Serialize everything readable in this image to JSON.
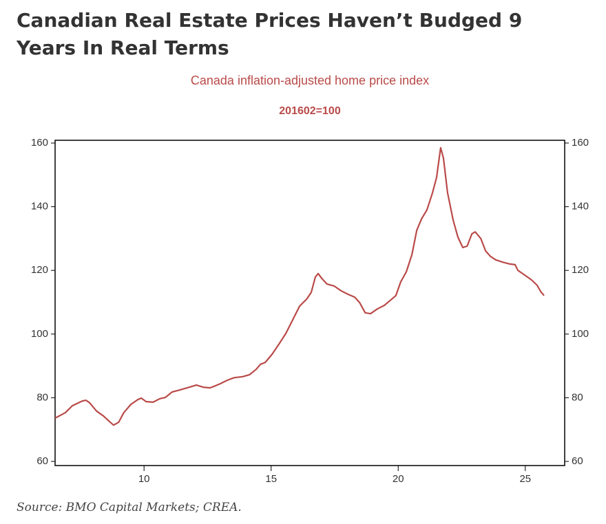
{
  "header": {
    "title": "Canadian Real Estate Prices Haven’t Budged 9 Years In Real Terms"
  },
  "chart_data": {
    "type": "line",
    "title": "Canada inflation-adjusted home price index",
    "subtitle": "201602=100",
    "x": [
      6.5,
      6.9,
      7.18,
      7.58,
      7.72,
      7.86,
      8.13,
      8.4,
      8.67,
      8.8,
      9.0,
      9.2,
      9.48,
      9.75,
      9.89,
      10.08,
      10.35,
      10.62,
      10.84,
      11.1,
      11.43,
      11.78,
      12.06,
      12.33,
      12.6,
      12.73,
      13.0,
      13.28,
      13.55,
      13.87,
      14.14,
      14.41,
      14.58,
      14.77,
      15.04,
      15.31,
      15.58,
      15.85,
      16.12,
      16.4,
      16.58,
      16.74,
      16.85,
      16.99,
      17.2,
      17.48,
      17.75,
      18.02,
      18.29,
      18.48,
      18.7,
      18.91,
      19.18,
      19.45,
      19.72,
      19.91,
      20.1,
      20.32,
      20.54,
      20.73,
      20.92,
      21.13,
      21.35,
      21.51,
      21.62,
      21.67,
      21.78,
      21.94,
      22.16,
      22.35,
      22.54,
      22.71,
      22.9,
      23.03,
      23.25,
      23.44,
      23.63,
      23.84,
      24.11,
      24.39,
      24.6,
      24.71,
      24.98,
      25.25,
      25.47,
      25.61,
      25.74
    ],
    "series": [
      {
        "color": "#b94a48",
        "values": [
          73.6,
          75.3,
          77.5,
          79.0,
          79.2,
          78.4,
          75.8,
          74.3,
          72.3,
          71.4,
          72.3,
          75.3,
          77.9,
          79.4,
          79.9,
          78.8,
          78.6,
          79.7,
          80.1,
          81.8,
          82.5,
          83.3,
          84.0,
          83.3,
          83.1,
          83.5,
          84.4,
          85.5,
          86.3,
          86.6,
          87.2,
          88.9,
          90.5,
          91.1,
          93.7,
          96.9,
          100.2,
          104.5,
          108.8,
          111.0,
          113.1,
          117.9,
          119.0,
          117.5,
          115.7,
          115.1,
          113.6,
          112.5,
          111.6,
          109.9,
          106.7,
          106.4,
          107.9,
          109.0,
          110.8,
          112.1,
          116.4,
          119.6,
          125.0,
          132.6,
          136.2,
          139.0,
          144.4,
          149.2,
          155.6,
          158.5,
          155.2,
          144.4,
          135.8,
          130.4,
          127.2,
          127.6,
          131.5,
          132.1,
          130.0,
          126.1,
          124.4,
          123.3,
          122.6,
          122.0,
          121.8,
          120.0,
          118.5,
          117.0,
          115.3,
          113.3,
          112.1
        ]
      }
    ],
    "xlim": [
      6.5,
      26.55
    ],
    "xticks": [
      10,
      15,
      20,
      25
    ],
    "ylim": [
      60,
      160
    ],
    "yticks": [
      60,
      80,
      100,
      120,
      140,
      160
    ],
    "y2lim": [
      60,
      160
    ],
    "y2ticks": [
      60,
      80,
      100,
      120,
      140,
      160
    ]
  },
  "source": "Source: BMO Capital Markets; CREA."
}
